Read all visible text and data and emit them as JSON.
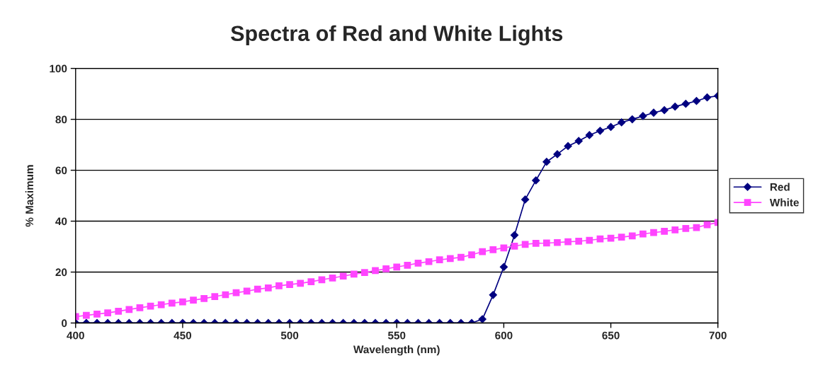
{
  "chart_data": {
    "type": "line",
    "title": "Spectra of Red and White Lights",
    "xlabel": "Wavelength (nm)",
    "ylabel": "% Maximum",
    "x": [
      400,
      405,
      410,
      415,
      420,
      425,
      430,
      435,
      440,
      445,
      450,
      455,
      460,
      465,
      470,
      475,
      480,
      485,
      490,
      495,
      500,
      505,
      510,
      515,
      520,
      525,
      530,
      535,
      540,
      545,
      550,
      555,
      560,
      565,
      570,
      575,
      580,
      585,
      590,
      595,
      600,
      605,
      610,
      615,
      620,
      625,
      630,
      635,
      640,
      645,
      650,
      655,
      660,
      665,
      670,
      675,
      680,
      685,
      690,
      695,
      700
    ],
    "series": [
      {
        "name": "Red",
        "color": "#000080",
        "marker": "diamond",
        "values": [
          0,
          0,
          0,
          0,
          0,
          0,
          0,
          0,
          0,
          0,
          0,
          0,
          0,
          0,
          0,
          0,
          0,
          0,
          0,
          0,
          0,
          0,
          0,
          0,
          0,
          0,
          0,
          0,
          0,
          0,
          0,
          0,
          0,
          0,
          0,
          0,
          0,
          0,
          1.5,
          11,
          22,
          34.5,
          48.5,
          56,
          63.3,
          66.3,
          69.5,
          71.5,
          73.8,
          75.5,
          77,
          78.8,
          80,
          81.3,
          82.6,
          83.6,
          85,
          86.1,
          87.2,
          88.6,
          89.2
        ]
      },
      {
        "name": "White",
        "color": "#ff44ff",
        "marker": "square",
        "values": [
          2.5,
          3.0,
          3.5,
          4.0,
          4.6,
          5.3,
          6.0,
          6.6,
          7.2,
          7.8,
          8.3,
          9.0,
          9.6,
          10.4,
          11.1,
          11.9,
          12.5,
          13.3,
          13.8,
          14.6,
          15.1,
          15.6,
          16.2,
          17.0,
          17.7,
          18.4,
          19.2,
          19.8,
          20.6,
          21.3,
          22.0,
          22.7,
          23.5,
          24.1,
          24.8,
          25.3,
          25.8,
          26.8,
          28.0,
          28.8,
          29.5,
          30.2,
          30.9,
          31.3,
          31.4,
          31.6,
          31.9,
          32.1,
          32.5,
          33.0,
          33.3,
          33.7,
          34.2,
          35.0,
          35.5,
          36.0,
          36.6,
          37.1,
          37.5,
          38.6,
          39.5
        ]
      }
    ],
    "xlim": [
      400,
      700
    ],
    "xticks": [
      400,
      450,
      500,
      550,
      600,
      650,
      700
    ],
    "ylim": [
      0,
      100
    ],
    "yticks": [
      0,
      20,
      40,
      60,
      80,
      100
    ],
    "grid": "y",
    "legend": "right",
    "line_style": "solid"
  }
}
